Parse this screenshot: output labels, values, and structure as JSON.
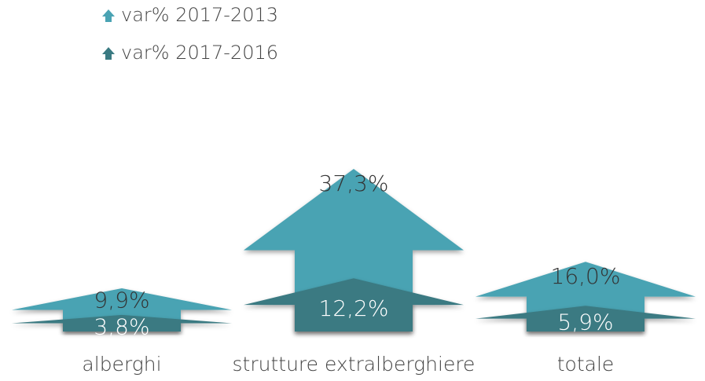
{
  "chart_data": {
    "type": "arrow-bar",
    "categories": [
      "alberghi",
      "strutture extralberghiere",
      "totale"
    ],
    "series": [
      {
        "name": "var% 2017-2013",
        "color": "#4aa3b3",
        "values": [
          9.9,
          37.3,
          16.0
        ],
        "value_labels": [
          "9,9%",
          "37,3%",
          "16,0%"
        ]
      },
      {
        "name": "var% 2017-2016",
        "color": "#3a7a82",
        "values": [
          3.8,
          12.2,
          5.9
        ],
        "value_labels": [
          "3,8%",
          "12,2%",
          "5,9%"
        ]
      }
    ]
  }
}
